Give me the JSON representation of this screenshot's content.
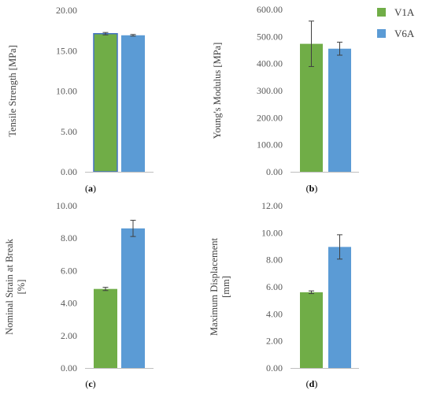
{
  "colors": {
    "V1A": "#70AD47",
    "V6A": "#5B9BD5",
    "axis": "#bfbfbf",
    "error": "#404040"
  },
  "legend": {
    "position": "top-right",
    "entries": [
      {
        "name": "V1A",
        "color": "#70AD47"
      },
      {
        "name": "V6A",
        "color": "#5B9BD5"
      }
    ]
  },
  "chart_data": [
    {
      "type": "bar",
      "panel_label": "(a)",
      "ylabel": "Tensile Strength [MPa]",
      "ylabel_lines": [
        "Tensile Strength [MPa]"
      ],
      "ylim": [
        0,
        20
      ],
      "yticks": [
        0,
        5,
        10,
        15,
        20
      ],
      "ytick_labels": [
        "0.00",
        "5.00",
        "10.00",
        "15.00",
        "20.00"
      ],
      "grid": false,
      "series": [
        {
          "name": "V1A",
          "value": 17.1,
          "error": 0.15
        },
        {
          "name": "V6A",
          "value": 16.9,
          "error": 0.1
        }
      ]
    },
    {
      "type": "bar",
      "panel_label": "(b)",
      "ylabel": "Young's Modulus [MPa]",
      "ylabel_lines": [
        "Young's Modulus [MPa]"
      ],
      "ylim": [
        0,
        600
      ],
      "yticks": [
        0,
        100,
        200,
        300,
        400,
        500,
        600
      ],
      "ytick_labels": [
        "0.00",
        "100.00",
        "200.00",
        "300.00",
        "400.00",
        "500.00",
        "600.00"
      ],
      "grid": false,
      "series": [
        {
          "name": "V1A",
          "value": 473,
          "error": 84
        },
        {
          "name": "V6A",
          "value": 455,
          "error": 24
        }
      ]
    },
    {
      "type": "bar",
      "panel_label": "(c)",
      "ylabel": "Nominal Strain at Break [%]",
      "ylabel_lines": [
        "Nominal Strain at Break",
        "[%]"
      ],
      "ylim": [
        0,
        10
      ],
      "yticks": [
        0,
        2,
        4,
        6,
        8,
        10
      ],
      "ytick_labels": [
        "0.00",
        "2.00",
        "4.00",
        "6.00",
        "8.00",
        "10.00"
      ],
      "grid": false,
      "series": [
        {
          "name": "V1A",
          "value": 4.87,
          "error": 0.1
        },
        {
          "name": "V6A",
          "value": 8.6,
          "error": 0.5
        }
      ]
    },
    {
      "type": "bar",
      "panel_label": "(d)",
      "ylabel": "Maximum Displacement [mm]",
      "ylabel_lines": [
        "Maximum Displacement",
        "[mm]"
      ],
      "ylim": [
        0,
        12
      ],
      "yticks": [
        0,
        2,
        4,
        6,
        8,
        10,
        12
      ],
      "ytick_labels": [
        "0.00",
        "2.00",
        "4.00",
        "6.00",
        "8.00",
        "10.00",
        "12.00"
      ],
      "grid": false,
      "series": [
        {
          "name": "V1A",
          "value": 5.6,
          "error": 0.1
        },
        {
          "name": "V6A",
          "value": 8.95,
          "error": 0.9
        }
      ]
    }
  ]
}
